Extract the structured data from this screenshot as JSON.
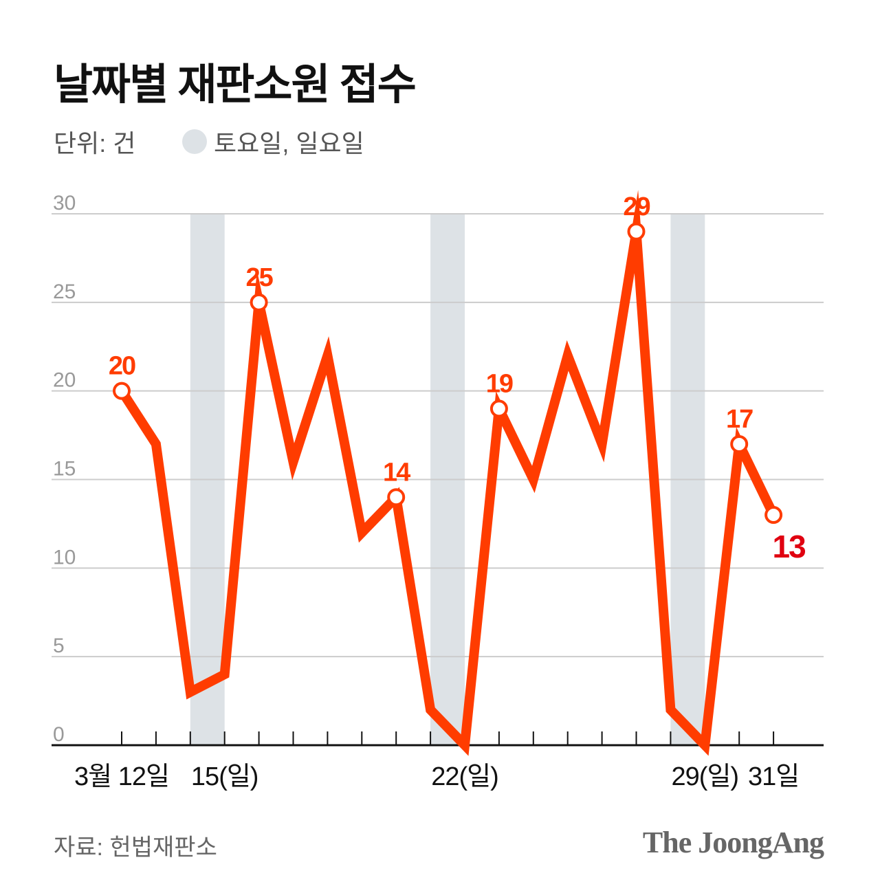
{
  "title": "날짜별 재판소원 접수",
  "unit_label": "단위: 건",
  "legend_label": "토요일, 일요일",
  "source": "자료: 헌법재판소",
  "logo": "The JoongAng",
  "colors": {
    "line": "#ff3c00",
    "last_label": "#e00010",
    "weekend": "#dde2e6",
    "grid": "#cccccc"
  },
  "chart_data": {
    "type": "line",
    "x": [
      12,
      13,
      14,
      15,
      16,
      17,
      18,
      19,
      20,
      21,
      22,
      23,
      24,
      25,
      26,
      27,
      28,
      29,
      30,
      31
    ],
    "values": [
      20,
      17,
      3,
      4,
      25,
      16,
      22,
      12,
      14,
      2,
      0,
      19,
      15,
      22,
      17,
      29,
      2,
      0,
      17,
      13
    ],
    "labeled_points": [
      12,
      16,
      20,
      23,
      27,
      30,
      31
    ],
    "weekend_ranges": [
      [
        14,
        15
      ],
      [
        21,
        22
      ],
      [
        28,
        29
      ]
    ],
    "ylim": [
      0,
      30
    ],
    "yticks": [
      0,
      5,
      10,
      15,
      20,
      25,
      30
    ],
    "xtick_labels": [
      {
        "day": 12,
        "label": "3월 12일"
      },
      {
        "day": 15,
        "label": "15(일)"
      },
      {
        "day": 22,
        "label": "22(일)"
      },
      {
        "day": 29,
        "label": "29(일)"
      },
      {
        "day": 31,
        "label": "31일"
      }
    ],
    "grid": true
  }
}
